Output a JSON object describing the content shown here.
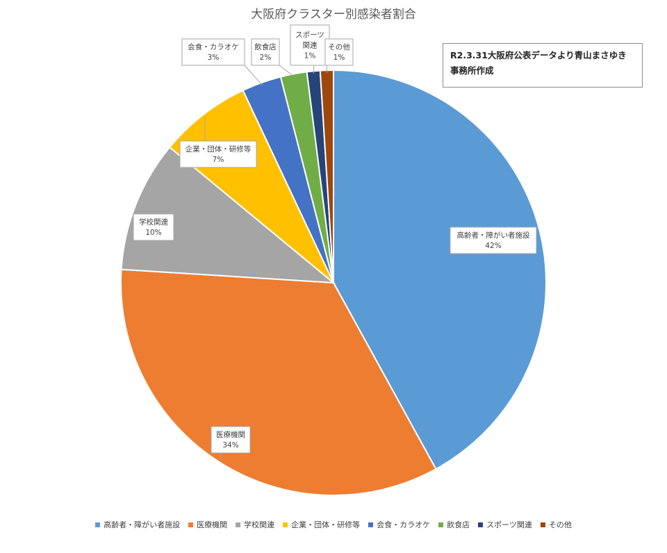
{
  "chart_data": {
    "type": "pie",
    "title": "大阪府クラスター別感染者割合",
    "slices": [
      {
        "name": "高齢者・障がい者施設",
        "value": 42,
        "label": "42%",
        "color": "#5b9bd5"
      },
      {
        "name": "医療機関",
        "value": 34,
        "label": "34%",
        "color": "#ed7d31"
      },
      {
        "name": "学校関連",
        "value": 10,
        "label": "10%",
        "color": "#a5a5a5"
      },
      {
        "name": "企業・団体・研修等",
        "value": 7,
        "label": "7%",
        "color": "#ffc000"
      },
      {
        "name": "会食・カラオケ",
        "value": 3,
        "label": "3%",
        "color": "#4472c4"
      },
      {
        "name": "飲食店",
        "value": 2,
        "label": "2%",
        "color": "#70ad47"
      },
      {
        "name": "スポーツ関連",
        "value": 1,
        "label": "1%",
        "color": "#264478"
      },
      {
        "name": "その他",
        "value": 1,
        "label": "1%",
        "color": "#9e480e"
      }
    ],
    "legend_position": "bottom"
  },
  "note": {
    "line1": "R2.3.31大阪府公表データより青山まさゆき",
    "line2": "事務所作成"
  }
}
